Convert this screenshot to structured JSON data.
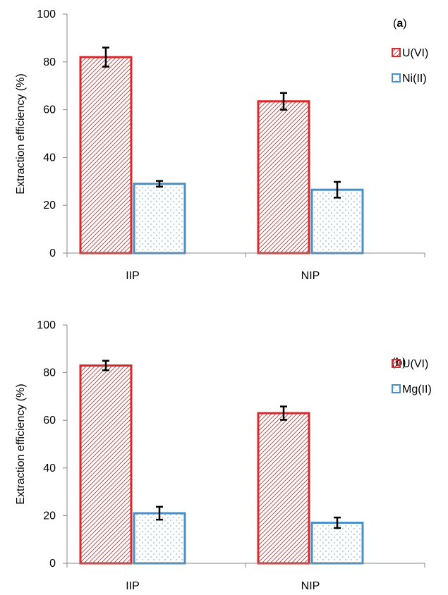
{
  "chart_data": [
    {
      "type": "bar",
      "panel_label": "a",
      "categories": [
        "IIP",
        "NIP"
      ],
      "series": [
        {
          "name": "U(VI)",
          "values": [
            82,
            63.5
          ],
          "errors": [
            4,
            3.5
          ],
          "color": "#d9292b",
          "pattern": "diagonal-hatch"
        },
        {
          "name": "Ni(II)",
          "values": [
            29,
            26.5
          ],
          "errors": [
            1.2,
            3.3
          ],
          "color": "#4a90c8",
          "pattern": "dots"
        }
      ],
      "ylabel": "Extraction efficiency (%)",
      "ylim": [
        0,
        100
      ],
      "yticks": [
        "0",
        "20",
        "40",
        "60",
        "80",
        "100"
      ],
      "grid": false,
      "legend_position": "top-right"
    },
    {
      "type": "bar",
      "panel_label": "b",
      "categories": [
        "IIP",
        "NIP"
      ],
      "series": [
        {
          "name": "U(VI)",
          "values": [
            83,
            63
          ],
          "errors": [
            2,
            2.8
          ],
          "color": "#d9292b",
          "pattern": "diagonal-hatch"
        },
        {
          "name": "Mg(II)",
          "values": [
            21,
            17
          ],
          "errors": [
            2.7,
            2.2
          ],
          "color": "#4a90c8",
          "pattern": "dots"
        }
      ],
      "ylabel": "Extraction efficiency (%)",
      "ylim": [
        0,
        100
      ],
      "yticks": [
        "0",
        "20",
        "40",
        "60",
        "80",
        "100"
      ],
      "grid": false,
      "legend_position": "top-right"
    }
  ]
}
